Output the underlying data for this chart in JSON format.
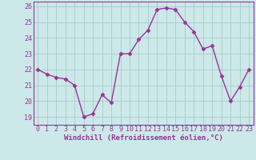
{
  "x": [
    0,
    1,
    2,
    3,
    4,
    5,
    6,
    7,
    8,
    9,
    10,
    11,
    12,
    13,
    14,
    15,
    16,
    17,
    18,
    19,
    20,
    21,
    22,
    23
  ],
  "y": [
    22.0,
    21.7,
    21.5,
    21.4,
    21.0,
    19.0,
    19.2,
    20.4,
    19.9,
    23.0,
    23.0,
    23.9,
    24.5,
    25.8,
    25.9,
    25.8,
    25.0,
    24.4,
    23.3,
    23.5,
    21.6,
    20.0,
    20.9,
    22.0
  ],
  "line_color": "#993399",
  "marker": "D",
  "marker_size": 2.5,
  "bg_color": "#cce8e8",
  "grid_color": "#aacccc",
  "xlabel": "Windchill (Refroidissement éolien,°C)",
  "xlim": [
    -0.5,
    23.5
  ],
  "ylim": [
    18.5,
    26.3
  ],
  "yticks": [
    19,
    20,
    21,
    22,
    23,
    24,
    25,
    26
  ],
  "xticks": [
    0,
    1,
    2,
    3,
    4,
    5,
    6,
    7,
    8,
    9,
    10,
    11,
    12,
    13,
    14,
    15,
    16,
    17,
    18,
    19,
    20,
    21,
    22,
    23
  ],
  "xlabel_fontsize": 6.5,
  "tick_fontsize": 6.0,
  "tick_color": "#993399",
  "label_color": "#993399",
  "spine_color": "#993399",
  "linewidth": 1.0
}
